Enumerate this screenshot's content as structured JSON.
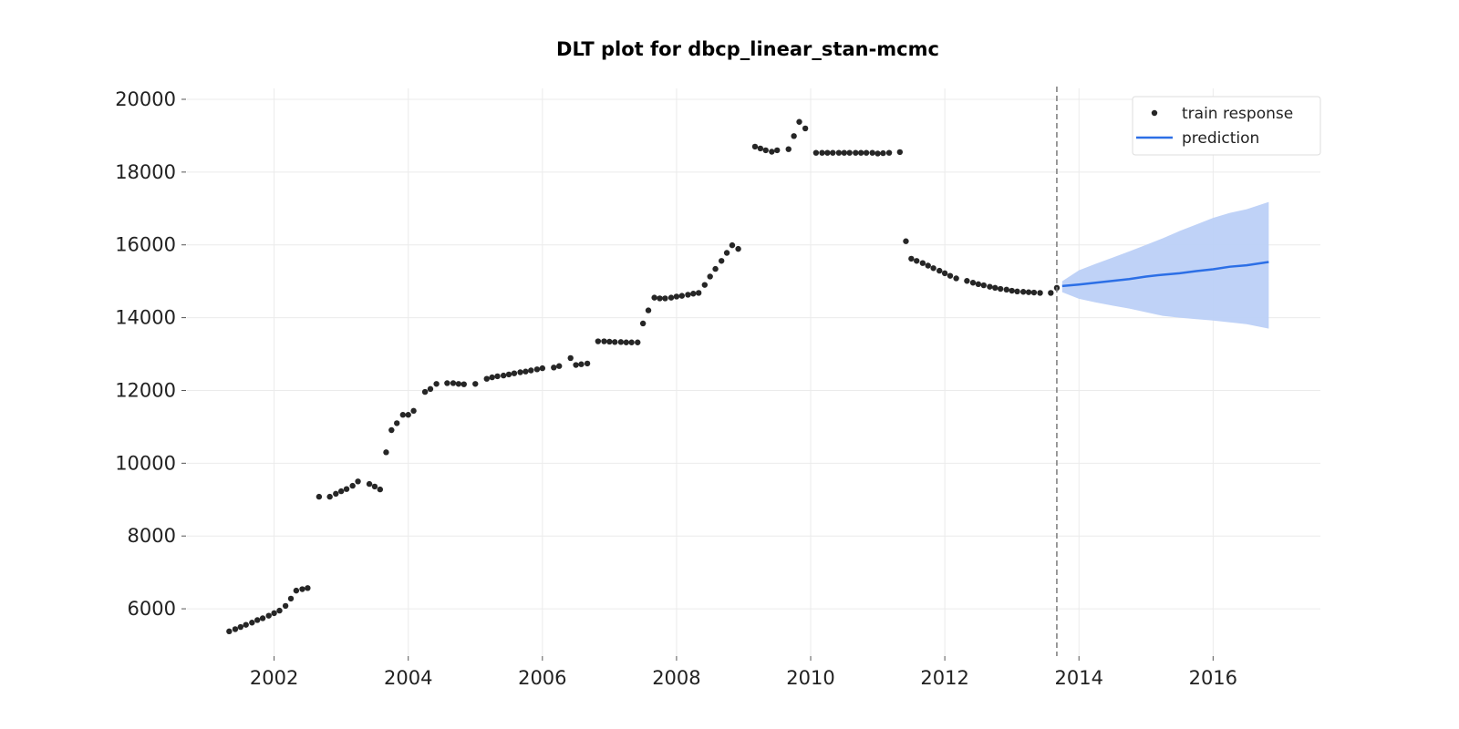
{
  "chart_data": {
    "type": "scatter",
    "title": "DLT plot for dbcp_linear_stan-mcmc",
    "xlabel": "",
    "ylabel": "",
    "xlim": [
      2000.7,
      2017.6
    ],
    "ylim": [
      4700,
      20300
    ],
    "x_ticks": [
      2002,
      2004,
      2006,
      2008,
      2010,
      2012,
      2014,
      2016
    ],
    "y_ticks": [
      6000,
      8000,
      10000,
      12000,
      14000,
      16000,
      18000,
      20000
    ],
    "grid": true,
    "legend_position": "top-right",
    "train_end": 2013.67,
    "colors": {
      "train": "#262626",
      "prediction": "#2c6fe6",
      "band": "#bcd0f7",
      "vline": "#7a7a7a"
    },
    "series": [
      {
        "name": "train response",
        "kind": "scatter",
        "points": [
          [
            2001.33,
            5380
          ],
          [
            2001.42,
            5440
          ],
          [
            2001.5,
            5500
          ],
          [
            2001.58,
            5560
          ],
          [
            2001.67,
            5620
          ],
          [
            2001.75,
            5690
          ],
          [
            2001.83,
            5740
          ],
          [
            2001.92,
            5810
          ],
          [
            2002.0,
            5880
          ],
          [
            2002.08,
            5950
          ],
          [
            2002.17,
            6080
          ],
          [
            2002.25,
            6280
          ],
          [
            2002.33,
            6500
          ],
          [
            2002.42,
            6540
          ],
          [
            2002.5,
            6570
          ],
          [
            2002.67,
            9080
          ],
          [
            2002.83,
            9080
          ],
          [
            2002.92,
            9160
          ],
          [
            2003.0,
            9230
          ],
          [
            2003.08,
            9290
          ],
          [
            2003.17,
            9380
          ],
          [
            2003.25,
            9500
          ],
          [
            2003.42,
            9430
          ],
          [
            2003.5,
            9360
          ],
          [
            2003.58,
            9280
          ],
          [
            2003.67,
            10300
          ],
          [
            2003.75,
            10910
          ],
          [
            2003.83,
            11100
          ],
          [
            2003.92,
            11330
          ],
          [
            2004.0,
            11330
          ],
          [
            2004.08,
            11440
          ],
          [
            2004.25,
            11960
          ],
          [
            2004.33,
            12040
          ],
          [
            2004.42,
            12180
          ],
          [
            2004.58,
            12200
          ],
          [
            2004.67,
            12200
          ],
          [
            2004.75,
            12180
          ],
          [
            2004.83,
            12170
          ],
          [
            2005.0,
            12180
          ],
          [
            2005.17,
            12320
          ],
          [
            2005.25,
            12360
          ],
          [
            2005.33,
            12390
          ],
          [
            2005.42,
            12410
          ],
          [
            2005.5,
            12440
          ],
          [
            2005.58,
            12470
          ],
          [
            2005.67,
            12500
          ],
          [
            2005.75,
            12520
          ],
          [
            2005.83,
            12550
          ],
          [
            2005.92,
            12580
          ],
          [
            2006.0,
            12610
          ],
          [
            2006.17,
            12630
          ],
          [
            2006.25,
            12670
          ],
          [
            2006.42,
            12890
          ],
          [
            2006.5,
            12700
          ],
          [
            2006.58,
            12720
          ],
          [
            2006.67,
            12740
          ],
          [
            2006.83,
            13350
          ],
          [
            2006.92,
            13350
          ],
          [
            2007.0,
            13340
          ],
          [
            2007.08,
            13330
          ],
          [
            2007.17,
            13330
          ],
          [
            2007.25,
            13320
          ],
          [
            2007.33,
            13320
          ],
          [
            2007.42,
            13320
          ],
          [
            2007.5,
            13840
          ],
          [
            2007.58,
            14200
          ],
          [
            2007.67,
            14550
          ],
          [
            2007.75,
            14530
          ],
          [
            2007.83,
            14530
          ],
          [
            2007.92,
            14550
          ],
          [
            2008.0,
            14580
          ],
          [
            2008.08,
            14600
          ],
          [
            2008.17,
            14630
          ],
          [
            2008.25,
            14660
          ],
          [
            2008.33,
            14680
          ],
          [
            2008.42,
            14900
          ],
          [
            2008.5,
            15130
          ],
          [
            2008.58,
            15340
          ],
          [
            2008.67,
            15560
          ],
          [
            2008.75,
            15780
          ],
          [
            2008.83,
            15990
          ],
          [
            2008.92,
            15890
          ],
          [
            2009.17,
            18700
          ],
          [
            2009.25,
            18650
          ],
          [
            2009.33,
            18600
          ],
          [
            2009.42,
            18560
          ],
          [
            2009.5,
            18600
          ],
          [
            2009.67,
            18630
          ],
          [
            2009.75,
            18990
          ],
          [
            2009.83,
            19380
          ],
          [
            2009.92,
            19200
          ],
          [
            2010.08,
            18530
          ],
          [
            2010.17,
            18530
          ],
          [
            2010.25,
            18530
          ],
          [
            2010.33,
            18530
          ],
          [
            2010.42,
            18530
          ],
          [
            2010.5,
            18530
          ],
          [
            2010.58,
            18530
          ],
          [
            2010.67,
            18530
          ],
          [
            2010.75,
            18530
          ],
          [
            2010.83,
            18530
          ],
          [
            2010.92,
            18530
          ],
          [
            2011.0,
            18510
          ],
          [
            2011.08,
            18520
          ],
          [
            2011.17,
            18530
          ],
          [
            2011.33,
            18550
          ],
          [
            2011.42,
            16100
          ],
          [
            2011.5,
            15620
          ],
          [
            2011.58,
            15560
          ],
          [
            2011.67,
            15500
          ],
          [
            2011.75,
            15430
          ],
          [
            2011.83,
            15360
          ],
          [
            2011.92,
            15290
          ],
          [
            2012.0,
            15220
          ],
          [
            2012.08,
            15150
          ],
          [
            2012.17,
            15080
          ],
          [
            2012.33,
            15010
          ],
          [
            2012.42,
            14960
          ],
          [
            2012.5,
            14920
          ],
          [
            2012.58,
            14890
          ],
          [
            2012.67,
            14850
          ],
          [
            2012.75,
            14820
          ],
          [
            2012.83,
            14790
          ],
          [
            2012.92,
            14770
          ],
          [
            2013.0,
            14740
          ],
          [
            2013.08,
            14720
          ],
          [
            2013.17,
            14710
          ],
          [
            2013.25,
            14700
          ],
          [
            2013.33,
            14690
          ],
          [
            2013.42,
            14680
          ],
          [
            2013.58,
            14680
          ],
          [
            2013.67,
            14820
          ]
        ]
      },
      {
        "name": "prediction",
        "kind": "line",
        "points": [
          [
            2013.75,
            14870
          ],
          [
            2014.0,
            14910
          ],
          [
            2014.25,
            14960
          ],
          [
            2014.5,
            15010
          ],
          [
            2014.75,
            15060
          ],
          [
            2015.0,
            15130
          ],
          [
            2015.25,
            15180
          ],
          [
            2015.5,
            15220
          ],
          [
            2015.75,
            15280
          ],
          [
            2016.0,
            15330
          ],
          [
            2016.25,
            15400
          ],
          [
            2016.5,
            15440
          ],
          [
            2016.83,
            15530
          ]
        ],
        "band_upper": [
          [
            2013.75,
            15000
          ],
          [
            2014.0,
            15300
          ],
          [
            2014.25,
            15480
          ],
          [
            2014.5,
            15650
          ],
          [
            2014.75,
            15820
          ],
          [
            2015.0,
            16000
          ],
          [
            2015.25,
            16180
          ],
          [
            2015.5,
            16380
          ],
          [
            2015.75,
            16560
          ],
          [
            2016.0,
            16740
          ],
          [
            2016.25,
            16880
          ],
          [
            2016.5,
            16980
          ],
          [
            2016.83,
            17180
          ]
        ],
        "band_lower": [
          [
            2013.75,
            14700
          ],
          [
            2014.0,
            14520
          ],
          [
            2014.25,
            14420
          ],
          [
            2014.5,
            14330
          ],
          [
            2014.75,
            14250
          ],
          [
            2015.0,
            14150
          ],
          [
            2015.25,
            14050
          ],
          [
            2015.5,
            14000
          ],
          [
            2015.75,
            13960
          ],
          [
            2016.0,
            13920
          ],
          [
            2016.25,
            13870
          ],
          [
            2016.5,
            13820
          ],
          [
            2016.83,
            13700
          ]
        ]
      }
    ]
  }
}
